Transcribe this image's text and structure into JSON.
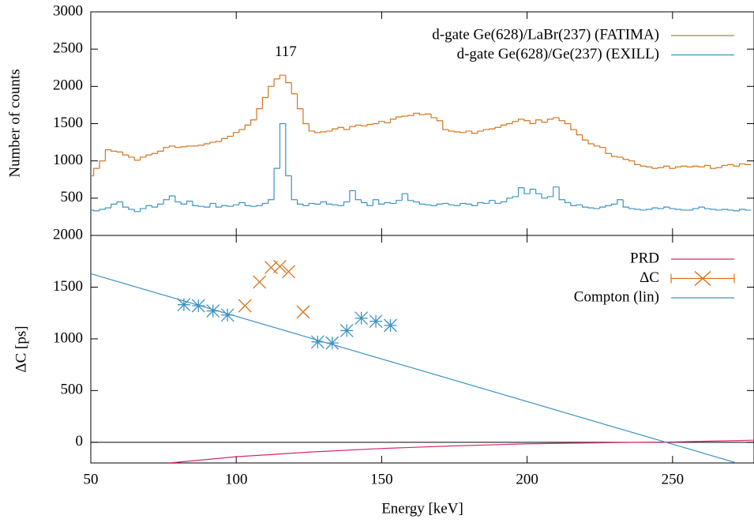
{
  "chart_data": [
    {
      "type": "histogram-step",
      "ylabel": "Number of counts",
      "xlim": [
        50,
        278
      ],
      "xticks": [
        50,
        100,
        150,
        200,
        250
      ],
      "ylim": [
        0,
        3000
      ],
      "yticks": [
        500,
        1000,
        1500,
        2000,
        2500,
        3000
      ],
      "legend": "top-right",
      "annotations": [
        {
          "text": "117",
          "x": 117,
          "y": 2450
        }
      ],
      "x": [
        50,
        52,
        54,
        56,
        58,
        60,
        62,
        64,
        66,
        68,
        70,
        72,
        74,
        76,
        78,
        80,
        82,
        84,
        86,
        88,
        90,
        92,
        94,
        96,
        98,
        100,
        102,
        104,
        106,
        108,
        110,
        112,
        114,
        116,
        118,
        120,
        122,
        124,
        126,
        128,
        130,
        132,
        134,
        136,
        138,
        140,
        142,
        144,
        146,
        148,
        150,
        152,
        154,
        156,
        158,
        160,
        162,
        164,
        166,
        168,
        170,
        172,
        174,
        176,
        178,
        180,
        182,
        184,
        186,
        188,
        190,
        192,
        194,
        196,
        198,
        200,
        202,
        204,
        206,
        208,
        210,
        212,
        214,
        216,
        218,
        220,
        222,
        224,
        226,
        228,
        230,
        232,
        234,
        236,
        238,
        240,
        242,
        244,
        246,
        248,
        250,
        252,
        254,
        256,
        258,
        260,
        262,
        264,
        266,
        268,
        270,
        272,
        274,
        276
      ],
      "series": [
        {
          "name": "d-gate Ge(628)/LaBr(237) (FATIMA)",
          "color": "#d5731c",
          "values": [
            800,
            900,
            1000,
            1150,
            1130,
            1120,
            1080,
            1050,
            1010,
            1050,
            1080,
            1100,
            1130,
            1180,
            1200,
            1180,
            1190,
            1200,
            1200,
            1210,
            1230,
            1250,
            1260,
            1300,
            1330,
            1380,
            1420,
            1480,
            1550,
            1700,
            1850,
            2000,
            2100,
            2150,
            2050,
            1900,
            1700,
            1500,
            1400,
            1380,
            1390,
            1400,
            1430,
            1450,
            1420,
            1460,
            1480,
            1470,
            1490,
            1500,
            1530,
            1510,
            1560,
            1590,
            1600,
            1610,
            1640,
            1620,
            1630,
            1580,
            1540,
            1420,
            1400,
            1390,
            1380,
            1400,
            1370,
            1400,
            1420,
            1430,
            1450,
            1480,
            1500,
            1530,
            1560,
            1540,
            1500,
            1550,
            1520,
            1560,
            1580,
            1540,
            1500,
            1420,
            1350,
            1280,
            1230,
            1200,
            1180,
            1100,
            1060,
            1050,
            1020,
            1000,
            950,
            930,
            920,
            900,
            910,
            930,
            900,
            920,
            930,
            920,
            930,
            920,
            940,
            900,
            910,
            940,
            950,
            930,
            960,
            950
          ]
        },
        {
          "name": "d-gate Ge(628)/Ge(237) (EXILL)",
          "color": "#3d92c4",
          "values": [
            340,
            330,
            350,
            370,
            420,
            450,
            380,
            350,
            320,
            360,
            400,
            380,
            420,
            480,
            530,
            450,
            420,
            460,
            400,
            390,
            380,
            430,
            380,
            400,
            390,
            410,
            440,
            400,
            390,
            400,
            430,
            480,
            900,
            1500,
            800,
            480,
            420,
            400,
            430,
            420,
            450,
            420,
            410,
            400,
            450,
            600,
            480,
            440,
            400,
            480,
            420,
            440,
            430,
            470,
            560,
            470,
            450,
            420,
            410,
            400,
            420,
            430,
            410,
            400,
            430,
            420,
            400,
            440,
            430,
            470,
            430,
            450,
            500,
            520,
            640,
            560,
            620,
            560,
            500,
            520,
            650,
            480,
            440,
            400,
            410,
            380,
            370,
            360,
            380,
            400,
            420,
            480,
            380,
            360,
            350,
            340,
            350,
            370,
            360,
            380,
            360,
            350,
            340,
            340,
            360,
            380,
            360,
            350,
            340,
            350,
            340,
            330,
            350,
            340
          ]
        }
      ]
    },
    {
      "type": "line-points",
      "xlabel": "Energy [keV]",
      "ylabel": "ΔC [ps]",
      "xlim": [
        50,
        278
      ],
      "xticks": [
        50,
        100,
        150,
        200,
        250
      ],
      "ylim": [
        -200,
        2000
      ],
      "yticks": [
        0,
        500,
        1000,
        1500,
        2000
      ],
      "zeroline": true,
      "legend": "top-right",
      "series": [
        {
          "name": "PRD",
          "color": "#d6276e",
          "style": "line",
          "x": [
            77,
            100,
            125,
            150,
            175,
            200,
            225,
            250,
            278
          ],
          "values": [
            -200,
            -140,
            -95,
            -60,
            -35,
            -15,
            -5,
            3,
            20
          ]
        },
        {
          "name": "ΔC",
          "color": "#d5731c",
          "style": "cross",
          "x": [
            103,
            108,
            112,
            115,
            118,
            123
          ],
          "values": [
            1320,
            1550,
            1690,
            1700,
            1650,
            1260
          ]
        },
        {
          "name": "Compton (lin)",
          "color": "#3d92c4",
          "style": "line",
          "x": [
            50,
            272
          ],
          "values": [
            1630,
            -200
          ]
        },
        {
          "color": "#3d92c4",
          "style": "asterisk",
          "x": [
            82,
            87,
            92,
            97,
            128,
            133,
            138,
            143,
            148,
            153
          ],
          "values": [
            1330,
            1320,
            1270,
            1230,
            970,
            960,
            1080,
            1200,
            1170,
            1130
          ]
        }
      ]
    }
  ]
}
